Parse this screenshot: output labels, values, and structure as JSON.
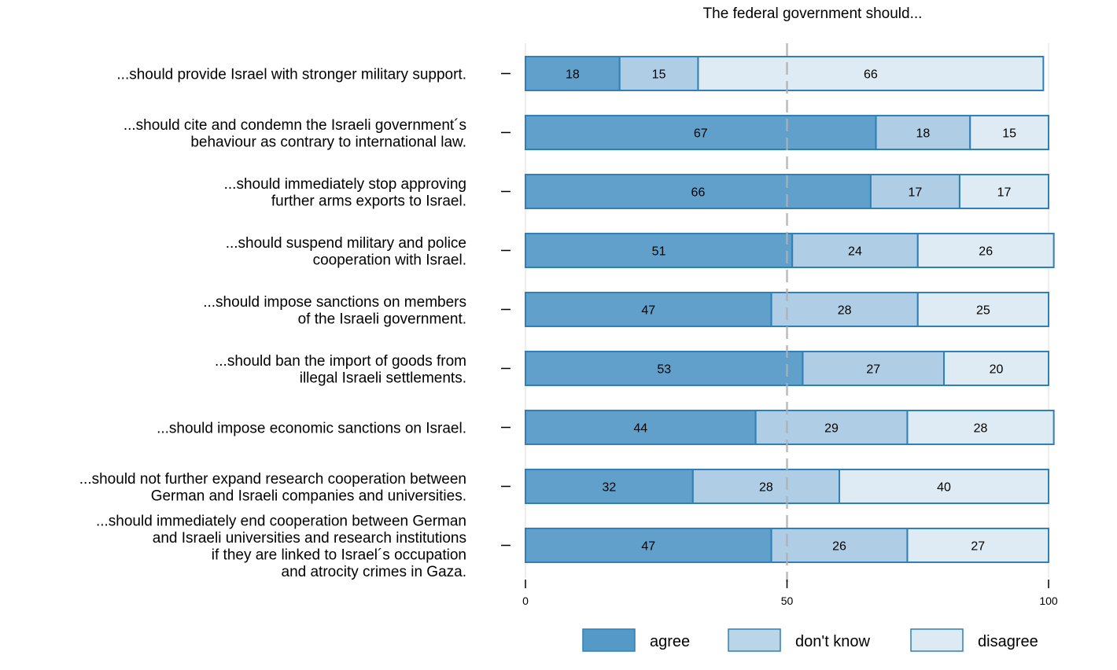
{
  "chart_data": {
    "type": "bar",
    "orientation": "horizontal",
    "stacked": true,
    "title": "The federal government should...",
    "xlabel": "",
    "ylabel": "",
    "xlim": [
      0,
      100
    ],
    "xticks": [
      0,
      50,
      100
    ],
    "reference_line": 50,
    "legend_position": "bottom",
    "categories": [
      [
        "...should provide Israel with stronger military support."
      ],
      [
        "...should cite and condemn the Israeli government´s",
        "behaviour as contrary to international law."
      ],
      [
        "...should immediately stop approving",
        "further arms exports to Israel."
      ],
      [
        "...should suspend military and police",
        "cooperation with Israel."
      ],
      [
        "...should impose sanctions on members",
        "of the Israeli government."
      ],
      [
        "...should ban the import of goods from",
        "illegal Israeli settlements."
      ],
      [
        "...should impose economic sanctions on Israel."
      ],
      [
        "...should not further expand research cooperation between",
        "German and Israeli companies and universities."
      ],
      [
        "...should immediately end cooperation between German",
        "and Israeli universities and research institutions",
        "if they are linked to Israel´s occupation",
        "and atrocity crimes in Gaza."
      ]
    ],
    "series": [
      {
        "name": "agree",
        "color": "#5599c7",
        "values": [
          18,
          67,
          66,
          51,
          47,
          53,
          44,
          32,
          47
        ]
      },
      {
        "name": "don't know",
        "color": "#a9c9e2",
        "values": [
          15,
          18,
          17,
          24,
          28,
          27,
          29,
          28,
          26
        ]
      },
      {
        "name": "disagree",
        "color": "#dceaf4",
        "values": [
          66,
          15,
          17,
          26,
          25,
          20,
          28,
          40,
          27
        ]
      }
    ],
    "bar_edge_color": "#2f80b8",
    "reference_line_color": "#b0b0b0"
  }
}
